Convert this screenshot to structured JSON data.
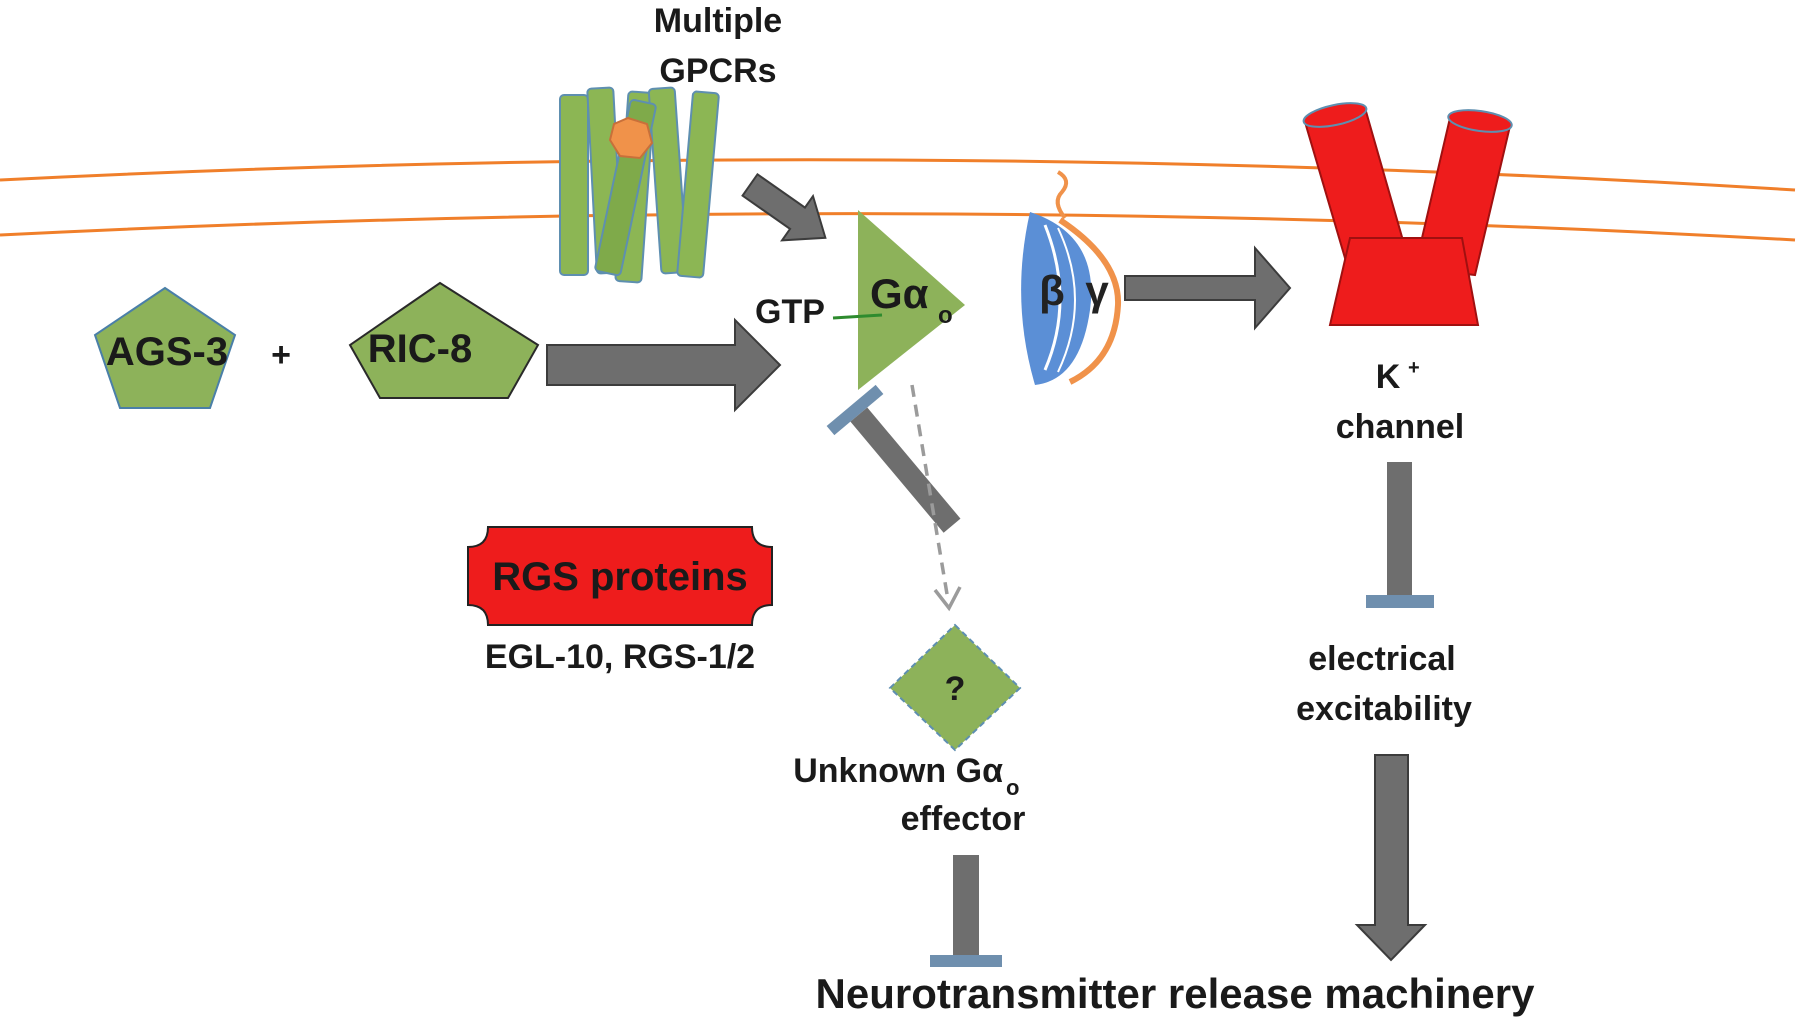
{
  "labels": {
    "gpcr_line1": "Multiple",
    "gpcr_line2": "GPCRs",
    "ags3": "AGS-3",
    "plus": "+",
    "ric8": "RIC-8",
    "gtp": "GTP",
    "galpha_main": "Gα",
    "galpha_sub": "o",
    "beta": "β",
    "gamma": "γ",
    "k_main": "K",
    "k_sup": "+",
    "channel": "channel",
    "rgs": "RGS proteins",
    "rgs_members": "EGL-10, RGS-1/2",
    "unknown_mark": "?",
    "unknown_line1": "Unknown Gα",
    "unknown_sub": "o",
    "unknown_line2": "effector",
    "elec_line1": "electrical",
    "elec_line2": "excitability",
    "neuro": "Neurotransmitter release machinery"
  },
  "colors": {
    "membrane": "#f07f2a",
    "protein_green": "#8db25a",
    "gpcr_green": "#8cb654",
    "ligand_orange": "#f0924a",
    "red": "#ee1c1c",
    "arrow_gray": "#6e6e6e",
    "inhibit_bar": "#6f8fae",
    "beta_blue": "#5b8fd6"
  }
}
